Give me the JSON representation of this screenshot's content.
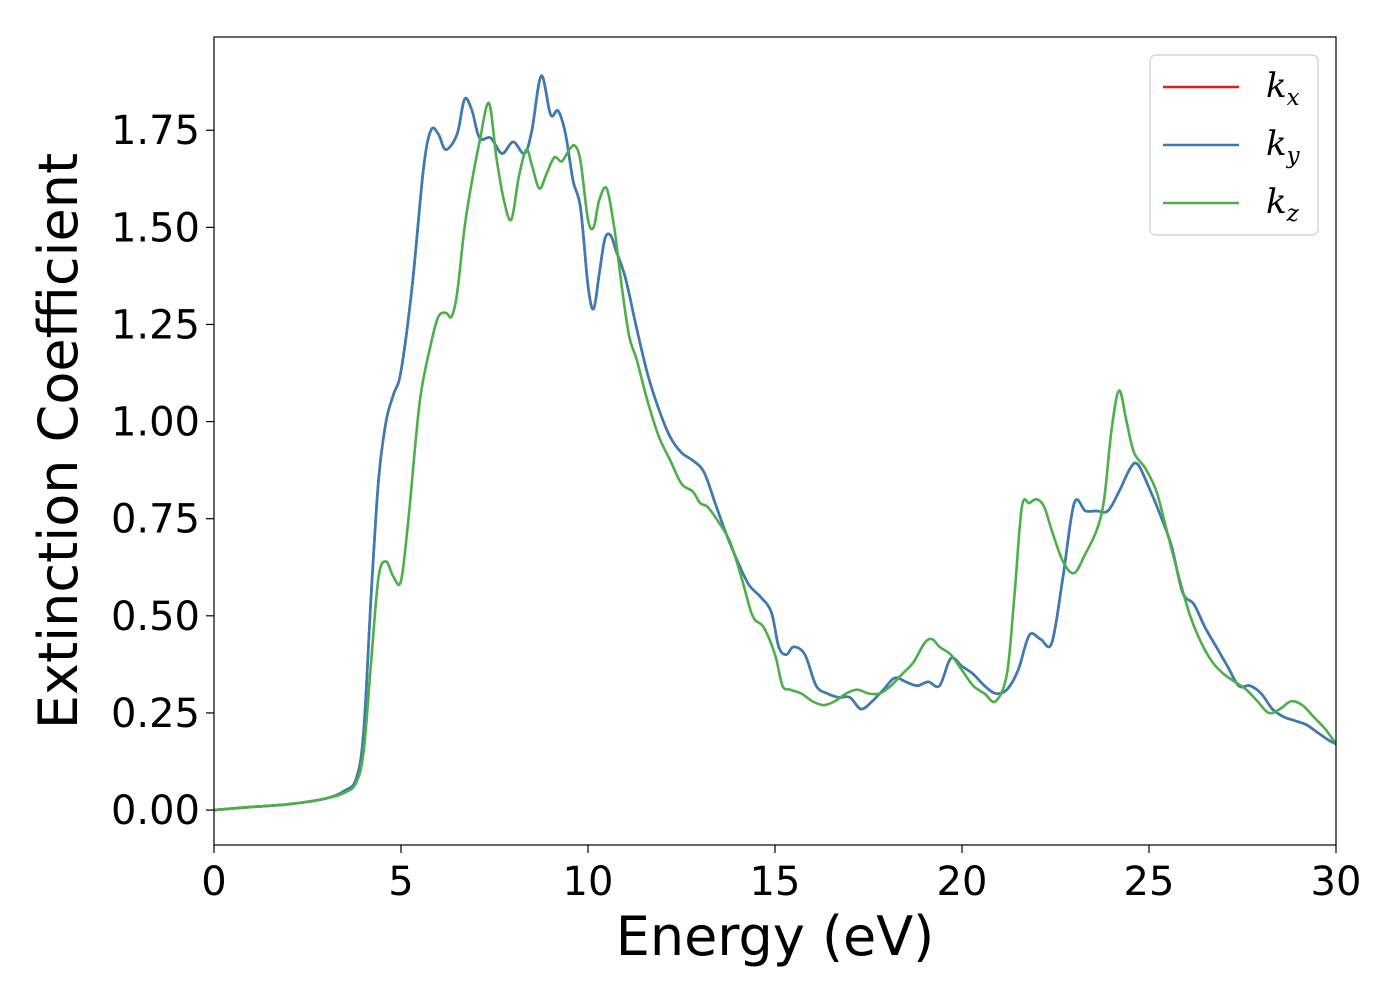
{
  "chart_data": {
    "type": "line",
    "xlabel": "Energy (eV)",
    "ylabel": "Extinction Coefficient",
    "xlim": [
      0,
      30
    ],
    "ylim": [
      -0.09,
      1.99
    ],
    "xticks": [
      0,
      5,
      10,
      15,
      20,
      25,
      30
    ],
    "xtick_labels": [
      "0",
      "5",
      "10",
      "15",
      "20",
      "25",
      "30"
    ],
    "yticks": [
      0.0,
      0.25,
      0.5,
      0.75,
      1.0,
      1.25,
      1.5,
      1.75
    ],
    "ytick_labels": [
      "0.00",
      "0.25",
      "0.50",
      "0.75",
      "1.00",
      "1.25",
      "1.50",
      "1.75"
    ],
    "grid": false,
    "legend_position": "top-right",
    "series": [
      {
        "name": "k_x",
        "label_base": "k",
        "label_sub": "x",
        "color": "#e41a1c",
        "x": [
          0,
          1,
          2,
          3,
          3.5,
          3.8,
          4.0,
          4.2,
          4.4,
          4.6,
          4.8,
          5.0,
          5.3,
          5.6,
          5.8,
          6.0,
          6.2,
          6.5,
          6.7,
          6.9,
          7.1,
          7.4,
          7.7,
          8.0,
          8.3,
          8.5,
          8.75,
          9.0,
          9.2,
          9.4,
          9.6,
          9.8,
          10.0,
          10.15,
          10.3,
          10.45,
          10.6,
          10.75,
          11.0,
          11.3,
          11.6,
          11.9,
          12.2,
          12.5,
          12.8,
          13.1,
          13.4,
          13.7,
          14.0,
          14.3,
          14.6,
          14.9,
          15.1,
          15.3,
          15.5,
          15.8,
          16.1,
          16.4,
          16.7,
          17.0,
          17.3,
          17.6,
          17.9,
          18.2,
          18.5,
          18.8,
          19.1,
          19.4,
          19.7,
          20.0,
          20.3,
          20.6,
          20.9,
          21.2,
          21.5,
          21.8,
          22.1,
          22.4,
          22.7,
          23.0,
          23.3,
          23.6,
          23.9,
          24.2,
          24.5,
          24.7,
          25.0,
          25.3,
          25.6,
          25.9,
          26.2,
          26.5,
          26.8,
          27.1,
          27.4,
          27.7,
          28.0,
          28.3,
          28.6,
          28.9,
          29.2,
          29.5,
          29.8,
          30.0
        ],
        "y": [
          0.0,
          0.008,
          0.015,
          0.03,
          0.05,
          0.08,
          0.2,
          0.55,
          0.85,
          1.0,
          1.07,
          1.13,
          1.35,
          1.65,
          1.75,
          1.74,
          1.7,
          1.74,
          1.83,
          1.8,
          1.73,
          1.73,
          1.69,
          1.72,
          1.69,
          1.75,
          1.89,
          1.79,
          1.8,
          1.74,
          1.62,
          1.55,
          1.35,
          1.29,
          1.38,
          1.47,
          1.48,
          1.44,
          1.37,
          1.24,
          1.12,
          1.03,
          0.96,
          0.92,
          0.9,
          0.87,
          0.79,
          0.71,
          0.64,
          0.58,
          0.55,
          0.51,
          0.42,
          0.4,
          0.42,
          0.4,
          0.32,
          0.3,
          0.29,
          0.29,
          0.26,
          0.28,
          0.31,
          0.34,
          0.33,
          0.32,
          0.33,
          0.32,
          0.39,
          0.37,
          0.35,
          0.32,
          0.3,
          0.31,
          0.36,
          0.45,
          0.44,
          0.43,
          0.6,
          0.79,
          0.77,
          0.77,
          0.77,
          0.82,
          0.88,
          0.89,
          0.83,
          0.76,
          0.68,
          0.56,
          0.53,
          0.47,
          0.42,
          0.37,
          0.32,
          0.32,
          0.3,
          0.26,
          0.24,
          0.23,
          0.22,
          0.2,
          0.18,
          0.17
        ]
      },
      {
        "name": "k_y",
        "label_base": "k",
        "label_sub": "y",
        "color": "#377eb8",
        "x": [
          0,
          1,
          2,
          3,
          3.5,
          3.8,
          4.0,
          4.2,
          4.4,
          4.6,
          4.8,
          5.0,
          5.3,
          5.6,
          5.8,
          6.0,
          6.2,
          6.5,
          6.7,
          6.9,
          7.1,
          7.4,
          7.7,
          8.0,
          8.3,
          8.5,
          8.75,
          9.0,
          9.2,
          9.4,
          9.6,
          9.8,
          10.0,
          10.15,
          10.3,
          10.45,
          10.6,
          10.75,
          11.0,
          11.3,
          11.6,
          11.9,
          12.2,
          12.5,
          12.8,
          13.1,
          13.4,
          13.7,
          14.0,
          14.3,
          14.6,
          14.9,
          15.1,
          15.3,
          15.5,
          15.8,
          16.1,
          16.4,
          16.7,
          17.0,
          17.3,
          17.6,
          17.9,
          18.2,
          18.5,
          18.8,
          19.1,
          19.4,
          19.7,
          20.0,
          20.3,
          20.6,
          20.9,
          21.2,
          21.5,
          21.8,
          22.1,
          22.4,
          22.7,
          23.0,
          23.3,
          23.6,
          23.9,
          24.2,
          24.5,
          24.7,
          25.0,
          25.3,
          25.6,
          25.9,
          26.2,
          26.5,
          26.8,
          27.1,
          27.4,
          27.7,
          28.0,
          28.3,
          28.6,
          28.9,
          29.2,
          29.5,
          29.8,
          30.0
        ],
        "y": [
          0.0,
          0.008,
          0.015,
          0.03,
          0.05,
          0.08,
          0.2,
          0.55,
          0.85,
          1.0,
          1.07,
          1.13,
          1.35,
          1.65,
          1.75,
          1.74,
          1.7,
          1.74,
          1.83,
          1.8,
          1.73,
          1.73,
          1.69,
          1.72,
          1.69,
          1.75,
          1.89,
          1.79,
          1.8,
          1.74,
          1.62,
          1.55,
          1.35,
          1.29,
          1.38,
          1.47,
          1.48,
          1.44,
          1.37,
          1.24,
          1.12,
          1.03,
          0.96,
          0.92,
          0.9,
          0.87,
          0.79,
          0.71,
          0.64,
          0.58,
          0.55,
          0.51,
          0.42,
          0.4,
          0.42,
          0.4,
          0.32,
          0.3,
          0.29,
          0.29,
          0.26,
          0.28,
          0.31,
          0.34,
          0.33,
          0.32,
          0.33,
          0.32,
          0.39,
          0.37,
          0.35,
          0.32,
          0.3,
          0.31,
          0.36,
          0.45,
          0.44,
          0.43,
          0.6,
          0.79,
          0.77,
          0.77,
          0.77,
          0.82,
          0.88,
          0.89,
          0.83,
          0.76,
          0.68,
          0.56,
          0.53,
          0.47,
          0.42,
          0.37,
          0.32,
          0.32,
          0.3,
          0.26,
          0.24,
          0.23,
          0.22,
          0.2,
          0.18,
          0.17
        ]
      },
      {
        "name": "k_z",
        "label_base": "k",
        "label_sub": "z",
        "color": "#4daf4a",
        "x": [
          0,
          1,
          2,
          3,
          3.5,
          3.8,
          4.0,
          4.2,
          4.4,
          4.6,
          4.8,
          5.0,
          5.2,
          5.5,
          5.8,
          6.0,
          6.2,
          6.35,
          6.5,
          6.7,
          6.9,
          7.1,
          7.35,
          7.55,
          7.75,
          7.95,
          8.15,
          8.35,
          8.5,
          8.7,
          8.9,
          9.1,
          9.3,
          9.5,
          9.65,
          9.8,
          10.0,
          10.15,
          10.3,
          10.5,
          10.7,
          10.9,
          11.1,
          11.3,
          11.6,
          11.9,
          12.2,
          12.5,
          12.8,
          13.0,
          13.2,
          13.5,
          13.8,
          14.1,
          14.4,
          14.7,
          15.0,
          15.2,
          15.4,
          15.7,
          16.0,
          16.3,
          16.6,
          16.9,
          17.2,
          17.5,
          17.8,
          18.1,
          18.4,
          18.7,
          19.0,
          19.2,
          19.4,
          19.7,
          20.0,
          20.3,
          20.6,
          20.9,
          21.2,
          21.4,
          21.6,
          21.8,
          22.0,
          22.2,
          22.4,
          22.7,
          23.0,
          23.3,
          23.6,
          23.8,
          24.0,
          24.2,
          24.4,
          24.6,
          24.9,
          25.2,
          25.5,
          25.8,
          26.1,
          26.4,
          26.7,
          27.0,
          27.3,
          27.6,
          27.9,
          28.2,
          28.5,
          28.8,
          29.1,
          29.4,
          29.7,
          30.0
        ],
        "y": [
          0.0,
          0.008,
          0.015,
          0.03,
          0.045,
          0.07,
          0.15,
          0.38,
          0.6,
          0.64,
          0.6,
          0.59,
          0.75,
          1.05,
          1.2,
          1.27,
          1.28,
          1.27,
          1.33,
          1.5,
          1.62,
          1.72,
          1.82,
          1.68,
          1.57,
          1.52,
          1.63,
          1.7,
          1.66,
          1.6,
          1.64,
          1.68,
          1.67,
          1.7,
          1.71,
          1.67,
          1.52,
          1.5,
          1.57,
          1.6,
          1.5,
          1.35,
          1.22,
          1.16,
          1.05,
          0.96,
          0.9,
          0.84,
          0.82,
          0.79,
          0.78,
          0.74,
          0.69,
          0.6,
          0.5,
          0.47,
          0.4,
          0.32,
          0.31,
          0.3,
          0.28,
          0.27,
          0.28,
          0.3,
          0.31,
          0.3,
          0.3,
          0.32,
          0.35,
          0.38,
          0.43,
          0.44,
          0.42,
          0.4,
          0.36,
          0.32,
          0.3,
          0.28,
          0.35,
          0.55,
          0.78,
          0.79,
          0.8,
          0.78,
          0.72,
          0.64,
          0.61,
          0.66,
          0.72,
          0.8,
          0.98,
          1.08,
          1.0,
          0.92,
          0.88,
          0.82,
          0.71,
          0.6,
          0.5,
          0.43,
          0.38,
          0.35,
          0.33,
          0.31,
          0.28,
          0.25,
          0.26,
          0.28,
          0.27,
          0.24,
          0.21,
          0.17
        ]
      }
    ]
  }
}
